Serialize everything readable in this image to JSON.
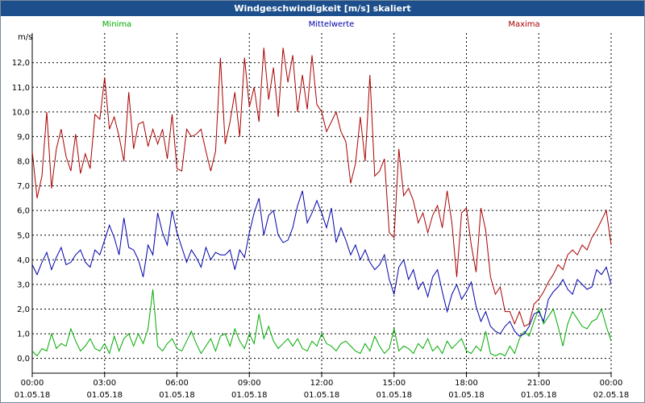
{
  "window": {
    "title": "Windgeschwindigkeit [m/s] skaliert"
  },
  "colors": {
    "minima": "#00aa00",
    "mittelwerte": "#0000aa",
    "maxima": "#aa0000",
    "titlebar": "#1c4f8c"
  },
  "chart_data": {
    "type": "line",
    "title": "Windgeschwindigkeit [m/s] skaliert",
    "ylabel": "m/s",
    "xlabel": "",
    "ylim": [
      -0.6,
      13.2
    ],
    "xlim": [
      0,
      24
    ],
    "grid": true,
    "legend_placement": "top",
    "y_ticks": [
      "0,0",
      "1,0",
      "2,0",
      "3,0",
      "4,0",
      "5,0",
      "6,0",
      "7,0",
      "8,0",
      "9,0",
      "10,0",
      "11,0",
      "12,0"
    ],
    "x_ticks": [
      {
        "time": "00:00",
        "date": "01.05.18"
      },
      {
        "time": "03:00",
        "date": "01.05.18"
      },
      {
        "time": "06:00",
        "date": "01.05.18"
      },
      {
        "time": "09:00",
        "date": "01.05.18"
      },
      {
        "time": "12:00",
        "date": "01.05.18"
      },
      {
        "time": "15:00",
        "date": "01.05.18"
      },
      {
        "time": "18:00",
        "date": "01.05.18"
      },
      {
        "time": "21:00",
        "date": "01.05.18"
      },
      {
        "time": "00:00",
        "date": "02.05.18"
      }
    ],
    "series": [
      {
        "name": "Minima",
        "color": "#00aa00",
        "x": [
          0,
          0.2,
          0.4,
          0.6,
          0.8,
          1.0,
          1.2,
          1.4,
          1.6,
          1.8,
          2.0,
          2.2,
          2.4,
          2.6,
          2.8,
          3.0,
          3.2,
          3.4,
          3.6,
          3.8,
          4.0,
          4.2,
          4.4,
          4.6,
          4.8,
          5.0,
          5.2,
          5.4,
          5.6,
          5.8,
          6.0,
          6.2,
          6.4,
          6.6,
          6.8,
          7.0,
          7.2,
          7.4,
          7.6,
          7.8,
          8.0,
          8.2,
          8.4,
          8.6,
          8.8,
          9.0,
          9.2,
          9.4,
          9.6,
          9.8,
          10.0,
          10.2,
          10.4,
          10.6,
          10.8,
          11.0,
          11.2,
          11.4,
          11.6,
          11.8,
          12.0,
          12.2,
          12.4,
          12.6,
          12.8,
          13.0,
          13.2,
          13.4,
          13.6,
          13.8,
          14.0,
          14.2,
          14.4,
          14.6,
          14.8,
          15.0,
          15.2,
          15.4,
          15.6,
          15.8,
          16.0,
          16.2,
          16.4,
          16.6,
          16.8,
          17.0,
          17.2,
          17.4,
          17.6,
          17.8,
          18.0,
          18.2,
          18.4,
          18.6,
          18.8,
          19.0,
          19.2,
          19.4,
          19.6,
          19.8,
          20.0,
          20.2,
          20.4,
          20.6,
          20.8,
          21.0,
          21.2,
          21.4,
          21.6,
          21.8,
          22.0,
          22.2,
          22.4,
          22.6,
          22.8,
          23.0,
          23.2,
          23.4,
          23.6,
          23.8,
          24.0
        ],
        "values": [
          0.3,
          0.1,
          0.4,
          0.3,
          1.0,
          0.4,
          0.6,
          0.5,
          1.2,
          0.7,
          0.3,
          0.5,
          0.8,
          0.4,
          0.3,
          0.6,
          0.2,
          0.9,
          0.3,
          0.8,
          1.0,
          0.5,
          1.0,
          0.6,
          1.2,
          2.8,
          0.5,
          0.3,
          0.6,
          0.8,
          0.4,
          0.3,
          0.7,
          1.1,
          0.6,
          0.2,
          0.5,
          0.8,
          0.3,
          0.9,
          1.0,
          0.5,
          1.2,
          0.7,
          0.4,
          1.0,
          0.6,
          1.8,
          0.8,
          1.3,
          0.7,
          0.4,
          0.6,
          0.8,
          0.5,
          0.8,
          0.4,
          0.3,
          0.7,
          0.5,
          1.0,
          0.6,
          0.5,
          0.3,
          0.6,
          0.7,
          0.5,
          0.3,
          0.2,
          0.6,
          0.3,
          0.9,
          0.5,
          0.2,
          0.4,
          1.2,
          0.3,
          0.5,
          0.4,
          0.2,
          0.6,
          0.4,
          0.8,
          0.3,
          0.5,
          0.2,
          0.7,
          0.4,
          0.6,
          0.8,
          0.3,
          0.2,
          0.5,
          0.3,
          1.1,
          0.2,
          0.1,
          0.2,
          0.1,
          0.5,
          0.2,
          0.8,
          1.1,
          0.9,
          1.5,
          2.0,
          1.4,
          1.7,
          2.0,
          1.3,
          0.5,
          1.4,
          1.9,
          1.6,
          1.3,
          1.2,
          1.5,
          1.6,
          2.0,
          1.3,
          0.7
        ]
      },
      {
        "name": "Mittelwerte",
        "color": "#0000aa",
        "x": [
          0,
          0.2,
          0.4,
          0.6,
          0.8,
          1.0,
          1.2,
          1.4,
          1.6,
          1.8,
          2.0,
          2.2,
          2.4,
          2.6,
          2.8,
          3.0,
          3.2,
          3.4,
          3.6,
          3.8,
          4.0,
          4.2,
          4.4,
          4.6,
          4.8,
          5.0,
          5.2,
          5.4,
          5.6,
          5.8,
          6.0,
          6.2,
          6.4,
          6.6,
          6.8,
          7.0,
          7.2,
          7.4,
          7.6,
          7.8,
          8.0,
          8.2,
          8.4,
          8.6,
          8.8,
          9.0,
          9.2,
          9.4,
          9.6,
          9.8,
          10.0,
          10.2,
          10.4,
          10.6,
          10.8,
          11.0,
          11.2,
          11.4,
          11.6,
          11.8,
          12.0,
          12.2,
          12.4,
          12.6,
          12.8,
          13.0,
          13.2,
          13.4,
          13.6,
          13.8,
          14.0,
          14.2,
          14.4,
          14.6,
          14.8,
          15.0,
          15.2,
          15.4,
          15.6,
          15.8,
          16.0,
          16.2,
          16.4,
          16.6,
          16.8,
          17.0,
          17.2,
          17.4,
          17.6,
          17.8,
          18.0,
          18.2,
          18.4,
          18.6,
          18.8,
          19.0,
          19.2,
          19.4,
          19.6,
          19.8,
          20.0,
          20.2,
          20.4,
          20.6,
          20.8,
          21.0,
          21.2,
          21.4,
          21.6,
          21.8,
          22.0,
          22.2,
          22.4,
          22.6,
          22.8,
          23.0,
          23.2,
          23.4,
          23.6,
          23.8,
          24.0
        ],
        "values": [
          3.8,
          3.4,
          3.9,
          4.3,
          3.6,
          4.1,
          4.5,
          3.8,
          3.9,
          4.2,
          4.4,
          3.9,
          3.7,
          4.4,
          4.2,
          4.8,
          5.4,
          4.9,
          4.2,
          5.7,
          4.5,
          4.4,
          4.0,
          3.3,
          4.6,
          4.2,
          5.9,
          5.1,
          4.6,
          6.0,
          5.1,
          4.5,
          3.9,
          4.4,
          4.1,
          3.7,
          4.5,
          4.0,
          4.3,
          4.2,
          4.2,
          4.4,
          3.6,
          4.4,
          4.1,
          5.1,
          5.9,
          6.5,
          5.0,
          5.8,
          6.0,
          5.0,
          4.7,
          4.8,
          5.3,
          6.2,
          6.8,
          5.5,
          5.9,
          6.4,
          5.9,
          5.3,
          6.1,
          4.7,
          5.3,
          4.8,
          4.2,
          4.6,
          4.0,
          4.4,
          3.9,
          3.6,
          3.8,
          4.2,
          3.2,
          2.6,
          3.7,
          4.0,
          3.2,
          3.6,
          2.8,
          3.1,
          2.5,
          3.3,
          3.6,
          2.7,
          1.9,
          2.6,
          3.0,
          2.4,
          2.7,
          3.1,
          2.1,
          1.5,
          1.9,
          1.3,
          1.1,
          1.0,
          1.3,
          1.5,
          1.1,
          0.9,
          1.0,
          1.3,
          1.8,
          1.9,
          1.5,
          2.4,
          2.7,
          2.9,
          3.2,
          2.8,
          2.6,
          3.2,
          3.0,
          2.8,
          2.9,
          3.6,
          3.4,
          3.7,
          3.0
        ]
      },
      {
        "name": "Maxima",
        "color": "#aa0000",
        "x": [
          0,
          0.2,
          0.4,
          0.6,
          0.8,
          1.0,
          1.2,
          1.4,
          1.6,
          1.8,
          2.0,
          2.2,
          2.4,
          2.6,
          2.8,
          3.0,
          3.2,
          3.4,
          3.6,
          3.8,
          4.0,
          4.2,
          4.4,
          4.6,
          4.8,
          5.0,
          5.2,
          5.4,
          5.6,
          5.8,
          6.0,
          6.2,
          6.4,
          6.6,
          6.8,
          7.0,
          7.2,
          7.4,
          7.6,
          7.8,
          8.0,
          8.2,
          8.4,
          8.6,
          8.8,
          9.0,
          9.2,
          9.4,
          9.6,
          9.8,
          10.0,
          10.2,
          10.4,
          10.6,
          10.8,
          11.0,
          11.2,
          11.4,
          11.6,
          11.8,
          12.0,
          12.2,
          12.4,
          12.6,
          12.8,
          13.0,
          13.2,
          13.4,
          13.6,
          13.8,
          14.0,
          14.2,
          14.4,
          14.6,
          14.8,
          15.0,
          15.2,
          15.4,
          15.6,
          15.8,
          16.0,
          16.2,
          16.4,
          16.6,
          16.8,
          17.0,
          17.2,
          17.4,
          17.6,
          17.8,
          18.0,
          18.2,
          18.4,
          18.6,
          18.8,
          19.0,
          19.2,
          19.4,
          19.6,
          19.8,
          20.0,
          20.2,
          20.4,
          20.6,
          20.8,
          21.0,
          21.2,
          21.4,
          21.6,
          21.8,
          22.0,
          22.2,
          22.4,
          22.6,
          22.8,
          23.0,
          23.2,
          23.4,
          23.6,
          23.8,
          24.0
        ],
        "values": [
          8.4,
          6.5,
          7.4,
          10.0,
          6.9,
          8.5,
          9.3,
          8.2,
          7.6,
          9.1,
          7.5,
          8.3,
          7.7,
          9.9,
          9.7,
          11.4,
          9.3,
          9.8,
          9.0,
          8.0,
          10.8,
          8.5,
          9.5,
          9.6,
          8.6,
          9.3,
          8.7,
          9.3,
          8.1,
          9.9,
          7.7,
          7.6,
          9.3,
          9.0,
          9.1,
          9.3,
          8.4,
          7.6,
          8.4,
          12.2,
          8.7,
          9.6,
          10.8,
          9.0,
          12.2,
          10.2,
          11.0,
          9.6,
          12.6,
          10.5,
          11.8,
          9.8,
          12.6,
          11.2,
          12.3,
          10.0,
          11.5,
          10.1,
          12.3,
          10.3,
          10.0,
          9.2,
          9.6,
          10.0,
          9.2,
          8.8,
          7.1,
          7.9,
          9.8,
          8.0,
          11.5,
          7.4,
          7.6,
          8.1,
          5.1,
          4.9,
          8.5,
          6.6,
          6.9,
          6.4,
          5.5,
          5.9,
          5.1,
          5.8,
          6.2,
          5.3,
          6.8,
          5.5,
          3.3,
          5.9,
          6.1,
          4.6,
          3.5,
          6.1,
          5.2,
          3.3,
          2.6,
          2.9,
          1.9,
          1.9,
          1.4,
          1.9,
          1.3,
          1.4,
          2.2,
          2.4,
          2.7,
          3.1,
          3.4,
          3.8,
          3.6,
          4.2,
          4.4,
          4.2,
          4.6,
          4.4,
          4.9,
          5.2,
          5.6,
          6.0,
          4.6
        ]
      }
    ]
  }
}
